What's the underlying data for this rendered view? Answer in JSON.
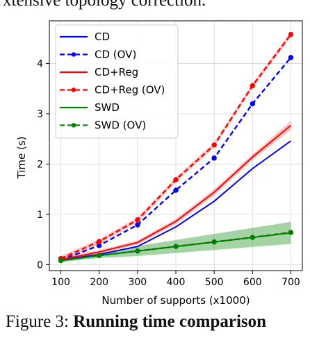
{
  "captions": {
    "top": "xtensive topology correction.",
    "bottom_prefix": "Figure 3:",
    "bottom_bold": "Running time comparison"
  },
  "chart_data": {
    "type": "line",
    "title": "",
    "xlabel": "Number of supports (x1000)",
    "ylabel": "Time (s)",
    "x": [
      100,
      200,
      300,
      400,
      500,
      600,
      700
    ],
    "xticks": [
      "100",
      "200",
      "300",
      "400",
      "500",
      "600",
      "700"
    ],
    "yticks": [
      "0",
      "1",
      "2",
      "3",
      "4"
    ],
    "xlim": [
      70,
      730
    ],
    "ylim": [
      -0.12,
      4.85
    ],
    "grid": true,
    "legend_position": "top-left",
    "series": [
      {
        "name": "CD",
        "color": "#0000ff",
        "style": "solid",
        "markers": false,
        "values": [
          0.09,
          0.2,
          0.36,
          0.75,
          1.26,
          1.91,
          2.46
        ]
      },
      {
        "name": "CD (OV)",
        "color": "#0000ff",
        "style": "dashed",
        "markers": true,
        "values": [
          0.09,
          0.38,
          0.79,
          1.48,
          2.12,
          3.2,
          4.12
        ]
      },
      {
        "name": "CD+Reg",
        "color": "#ff0000",
        "style": "solid",
        "markers": false,
        "values": [
          0.1,
          0.25,
          0.44,
          0.86,
          1.44,
          2.14,
          2.77
        ],
        "band": [
          0.06,
          0.04,
          0.04,
          0.05,
          0.06,
          0.06,
          0.09
        ]
      },
      {
        "name": "CD+Reg (OV)",
        "color": "#ff0000",
        "style": "dashed",
        "markers": true,
        "values": [
          0.12,
          0.46,
          0.89,
          1.69,
          2.38,
          3.56,
          4.58
        ],
        "band": [
          0.05,
          0.05,
          0.05,
          0.05,
          0.05,
          0.05,
          0.05
        ]
      },
      {
        "name": "SWD",
        "color": "#008000",
        "style": "solid",
        "markers": false,
        "values": [
          0.08,
          0.18,
          0.27,
          0.36,
          0.45,
          0.54,
          0.63
        ],
        "band": [
          0.03,
          0.05,
          0.1,
          0.13,
          0.16,
          0.19,
          0.22
        ]
      },
      {
        "name": "SWD (OV)",
        "color": "#008000",
        "style": "dashed",
        "markers": true,
        "values": [
          0.08,
          0.18,
          0.27,
          0.36,
          0.45,
          0.54,
          0.64
        ]
      }
    ]
  }
}
